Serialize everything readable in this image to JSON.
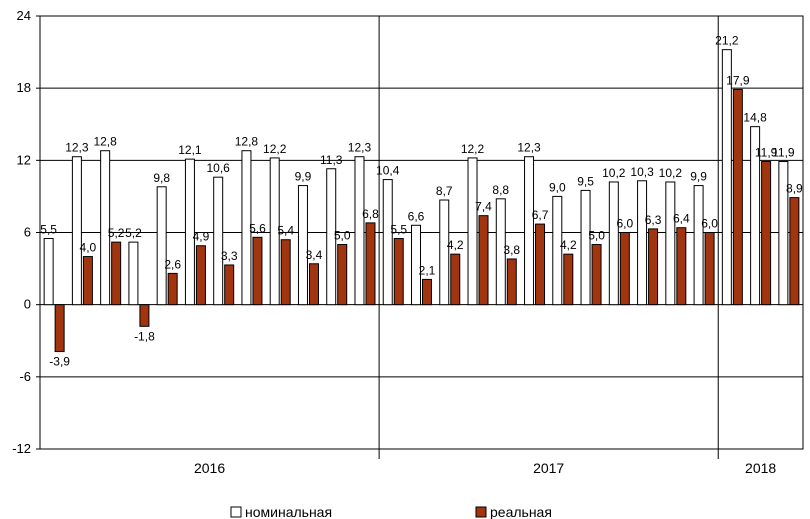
{
  "chart_data": {
    "type": "bar",
    "ylim": [
      -12,
      24
    ],
    "yticks": [
      "-12",
      "-6",
      "0",
      "6",
      "12",
      "18",
      "24"
    ],
    "grid": true,
    "legend_position": "bottom",
    "periods": [
      "2016",
      "2017",
      "2018"
    ],
    "period_month_counts": [
      12,
      12,
      3
    ],
    "series": [
      {
        "name": "номинальная",
        "color": "#ffffff",
        "values": [
          5.5,
          12.3,
          12.8,
          5.2,
          9.8,
          12.1,
          10.6,
          12.8,
          12.2,
          9.9,
          11.3,
          12.3,
          10.4,
          6.6,
          8.7,
          12.2,
          8.8,
          12.3,
          9.0,
          9.5,
          10.2,
          10.3,
          10.2,
          9.9,
          21.2,
          14.8,
          11.9
        ],
        "labels": [
          "5,5",
          "12,3",
          "12,8",
          "5,2",
          "9,8",
          "12,1",
          "10,6",
          "12,8",
          "12,2",
          "9,9",
          "11,3",
          "12,3",
          "10,4",
          "6,6",
          "8,7",
          "12,2",
          "8,8",
          "12,3",
          "9,0",
          "9,5",
          "10,2",
          "10,3",
          "10,2",
          "9,9",
          "21,2",
          "14,8",
          "11,9"
        ]
      },
      {
        "name": "реальная",
        "color": "#a0350f",
        "values": [
          -3.9,
          4.0,
          5.2,
          -1.8,
          2.6,
          4.9,
          3.3,
          5.6,
          5.4,
          3.4,
          5.0,
          6.8,
          5.5,
          2.1,
          4.2,
          7.4,
          3.8,
          6.7,
          4.2,
          5.0,
          6.0,
          6.3,
          6.4,
          6.0,
          17.9,
          11.9,
          8.9
        ],
        "labels": [
          "-3,9",
          "4,0",
          "5,2",
          "-1,8",
          "2,6",
          "4,9",
          "3,3",
          "5,6",
          "5,4",
          "3,4",
          "5,0",
          "6,8",
          "5,5",
          "2,1",
          "4,2",
          "7,4",
          "3,8",
          "6,7",
          "4,2",
          "5,0",
          "6,0",
          "6,3",
          "6,4",
          "6,0",
          "17,9",
          "11,9",
          "8,9"
        ]
      }
    ]
  }
}
